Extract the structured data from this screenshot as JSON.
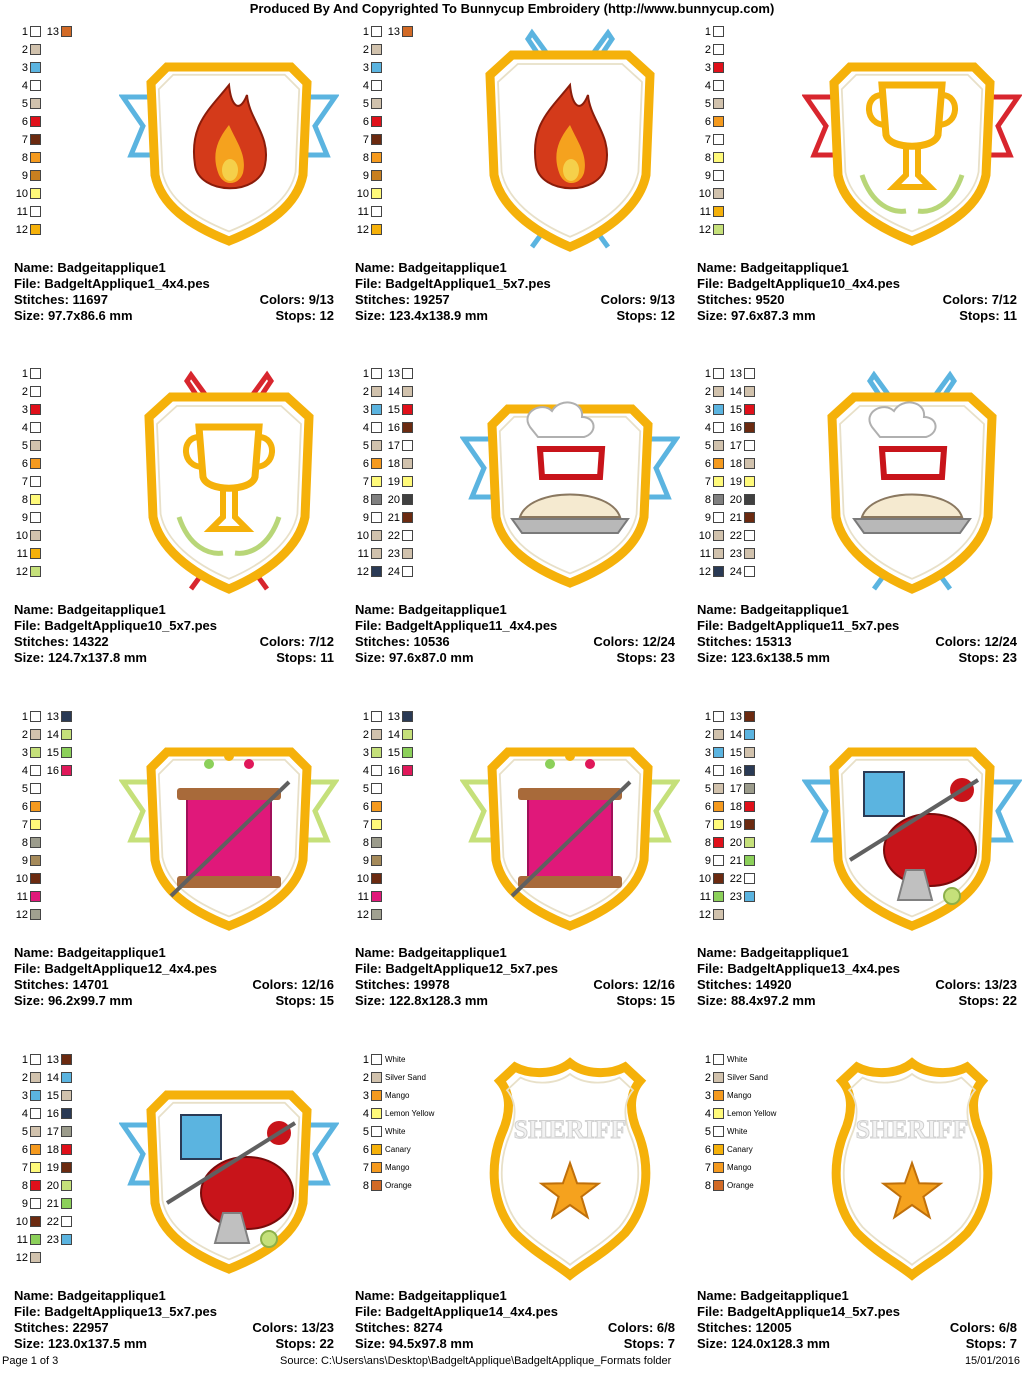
{
  "header": "Produced By And Copyrighted To Bunnycup Embroidery (http://www.bunnycup.com)",
  "labels": {
    "name": "Name:",
    "file": "File:",
    "stitches": "Stitches:",
    "size": "Size:",
    "colors": "Colors:",
    "stops": "Stops:"
  },
  "designs": [
    {
      "name": "Badgeitapplique1",
      "file": "BadgeltApplique1_4x4.pes",
      "stitches": "11697",
      "size": "97.7x86.6 mm",
      "colors": "9/13",
      "stops": "12",
      "art": {
        "shape": "shield-ribbon",
        "motif": "flame",
        "ribbon": "#5bb4e0",
        "inner": "#ffffff"
      },
      "swatches": [
        [
          "1",
          "#ffffff",
          ""
        ],
        [
          "2",
          "#d1c2ad",
          ""
        ],
        [
          "3",
          "#5bb4e0",
          ""
        ],
        [
          "4",
          "#ffffff",
          ""
        ],
        [
          "5",
          "#d1c2ad",
          ""
        ],
        [
          "6",
          "#e0101a",
          ""
        ],
        [
          "7",
          "#6b2a10",
          ""
        ],
        [
          "8",
          "#f59a1e",
          ""
        ],
        [
          "9",
          "#c87f20",
          ""
        ],
        [
          "10",
          "#fffa7a",
          ""
        ],
        [
          "11",
          "#ffffff",
          ""
        ],
        [
          "12",
          "#f5b10a",
          ""
        ],
        [
          "13",
          "#d26a26",
          ""
        ]
      ]
    },
    {
      "name": "Badgeitapplique1",
      "file": "BadgeltApplique1_5x7.pes",
      "stitches": "19257",
      "size": "123.4x138.9 mm",
      "colors": "9/13",
      "stops": "12",
      "art": {
        "shape": "shield-vertical",
        "motif": "flame",
        "ribbon": "#5bb4e0",
        "inner": "#ffffff"
      },
      "swatches": [
        [
          "1",
          "#ffffff",
          ""
        ],
        [
          "2",
          "#d1c2ad",
          ""
        ],
        [
          "3",
          "#5bb4e0",
          ""
        ],
        [
          "4",
          "#ffffff",
          ""
        ],
        [
          "5",
          "#d1c2ad",
          ""
        ],
        [
          "6",
          "#e0101a",
          ""
        ],
        [
          "7",
          "#6b2a10",
          ""
        ],
        [
          "8",
          "#f59a1e",
          ""
        ],
        [
          "9",
          "#c87f20",
          ""
        ],
        [
          "10",
          "#fffa7a",
          ""
        ],
        [
          "11",
          "#ffffff",
          ""
        ],
        [
          "12",
          "#f5b10a",
          ""
        ],
        [
          "13",
          "#d26a26",
          ""
        ]
      ]
    },
    {
      "name": "Badgeitapplique1",
      "file": "BadgeltApplique10_4x4.pes",
      "stitches": "9520",
      "size": "97.6x87.3 mm",
      "colors": "7/12",
      "stops": "11",
      "art": {
        "shape": "shield-ribbon",
        "motif": "trophy",
        "ribbon": "#d8262e",
        "inner": "#ffffff"
      },
      "swatches": [
        [
          "1",
          "#ffffff",
          ""
        ],
        [
          "2",
          "#ffffff",
          ""
        ],
        [
          "3",
          "#e0101a",
          ""
        ],
        [
          "4",
          "#ffffff",
          ""
        ],
        [
          "5",
          "#d1c2ad",
          ""
        ],
        [
          "6",
          "#f59a1e",
          ""
        ],
        [
          "7",
          "#ffffff",
          ""
        ],
        [
          "8",
          "#fffa7a",
          ""
        ],
        [
          "9",
          "#ffffff",
          ""
        ],
        [
          "10",
          "#d1c2ad",
          ""
        ],
        [
          "11",
          "#f5b10a",
          ""
        ],
        [
          "12",
          "#c5e07a",
          ""
        ]
      ]
    },
    {
      "name": "Badgeitapplique1",
      "file": "BadgeltApplique10_5x7.pes",
      "stitches": "14322",
      "size": "124.7x137.8 mm",
      "colors": "7/12",
      "stops": "11",
      "art": {
        "shape": "shield-vertical",
        "motif": "trophy",
        "ribbon": "#d8262e",
        "inner": "#ffffff"
      },
      "swatches": [
        [
          "1",
          "#ffffff",
          ""
        ],
        [
          "2",
          "#ffffff",
          ""
        ],
        [
          "3",
          "#e0101a",
          ""
        ],
        [
          "4",
          "#ffffff",
          ""
        ],
        [
          "5",
          "#d1c2ad",
          ""
        ],
        [
          "6",
          "#f59a1e",
          ""
        ],
        [
          "7",
          "#ffffff",
          ""
        ],
        [
          "8",
          "#fffa7a",
          ""
        ],
        [
          "9",
          "#ffffff",
          ""
        ],
        [
          "10",
          "#d1c2ad",
          ""
        ],
        [
          "11",
          "#f5b10a",
          ""
        ],
        [
          "12",
          "#c5e07a",
          ""
        ]
      ]
    },
    {
      "name": "Badgeitapplique1",
      "file": "BadgeltApplique11_4x4.pes",
      "stitches": "10536",
      "size": "97.6x87.0 mm",
      "colors": "12/24",
      "stops": "23",
      "art": {
        "shape": "shield-ribbon",
        "motif": "pie",
        "ribbon": "#5bb4e0",
        "inner": "#ffffff"
      },
      "swatches": [
        [
          "1",
          "#ffffff",
          ""
        ],
        [
          "2",
          "#d1c2ad",
          ""
        ],
        [
          "3",
          "#5bb4e0",
          ""
        ],
        [
          "4",
          "#ffffff",
          ""
        ],
        [
          "5",
          "#d1c2ad",
          ""
        ],
        [
          "6",
          "#f59a1e",
          ""
        ],
        [
          "7",
          "#fffa7a",
          ""
        ],
        [
          "8",
          "#808080",
          ""
        ],
        [
          "9",
          "#ffffff",
          ""
        ],
        [
          "10",
          "#d1c2ad",
          ""
        ],
        [
          "11",
          "#d1c2ad",
          ""
        ],
        [
          "12",
          "#2a3a55",
          ""
        ],
        [
          "13",
          "#ffffff",
          ""
        ],
        [
          "14",
          "#d1c2ad",
          ""
        ],
        [
          "15",
          "#e0101a",
          ""
        ],
        [
          "16",
          "#6b2a10",
          ""
        ],
        [
          "17",
          "#ffffff",
          ""
        ],
        [
          "18",
          "#d1c2ad",
          ""
        ],
        [
          "19",
          "#fffa7a",
          ""
        ],
        [
          "20",
          "#404040",
          ""
        ],
        [
          "21",
          "#6b2a10",
          ""
        ],
        [
          "22",
          "#ffffff",
          ""
        ],
        [
          "23",
          "#d1c2ad",
          ""
        ],
        [
          "24",
          "#ffffff",
          ""
        ]
      ]
    },
    {
      "name": "Badgeitapplique1",
      "file": "BadgeltApplique11_5x7.pes",
      "stitches": "15313",
      "size": "123.6x138.5 mm",
      "colors": "12/24",
      "stops": "23",
      "art": {
        "shape": "shield-vertical",
        "motif": "pie",
        "ribbon": "#5bb4e0",
        "inner": "#ffffff"
      },
      "swatches": [
        [
          "1",
          "#ffffff",
          ""
        ],
        [
          "2",
          "#d1c2ad",
          ""
        ],
        [
          "3",
          "#5bb4e0",
          ""
        ],
        [
          "4",
          "#ffffff",
          ""
        ],
        [
          "5",
          "#d1c2ad",
          ""
        ],
        [
          "6",
          "#f59a1e",
          ""
        ],
        [
          "7",
          "#fffa7a",
          ""
        ],
        [
          "8",
          "#808080",
          ""
        ],
        [
          "9",
          "#ffffff",
          ""
        ],
        [
          "10",
          "#d1c2ad",
          ""
        ],
        [
          "11",
          "#d1c2ad",
          ""
        ],
        [
          "12",
          "#2a3a55",
          ""
        ],
        [
          "13",
          "#ffffff",
          ""
        ],
        [
          "14",
          "#d1c2ad",
          ""
        ],
        [
          "15",
          "#e0101a",
          ""
        ],
        [
          "16",
          "#6b2a10",
          ""
        ],
        [
          "17",
          "#ffffff",
          ""
        ],
        [
          "18",
          "#d1c2ad",
          ""
        ],
        [
          "19",
          "#fffa7a",
          ""
        ],
        [
          "20",
          "#404040",
          ""
        ],
        [
          "21",
          "#6b2a10",
          ""
        ],
        [
          "22",
          "#ffffff",
          ""
        ],
        [
          "23",
          "#d1c2ad",
          ""
        ],
        [
          "24",
          "#ffffff",
          ""
        ]
      ]
    },
    {
      "name": "Badgeitapplique1",
      "file": "BadgeltApplique12_4x4.pes",
      "stitches": "14701",
      "size": "96.2x99.7 mm",
      "colors": "12/16",
      "stops": "15",
      "art": {
        "shape": "shield-ribbon",
        "motif": "spool",
        "ribbon": "#c5e07a",
        "inner": "#ffffff"
      },
      "swatches": [
        [
          "1",
          "#ffffff",
          ""
        ],
        [
          "2",
          "#d1c2ad",
          ""
        ],
        [
          "3",
          "#c5e07a",
          ""
        ],
        [
          "4",
          "#ffffff",
          ""
        ],
        [
          "5",
          "#ffffff",
          ""
        ],
        [
          "6",
          "#f59a1e",
          ""
        ],
        [
          "7",
          "#fffa7a",
          ""
        ],
        [
          "8",
          "#9c9c8c",
          ""
        ],
        [
          "9",
          "#a58a5a",
          ""
        ],
        [
          "10",
          "#6b2a10",
          ""
        ],
        [
          "11",
          "#e0187a",
          ""
        ],
        [
          "12",
          "#a0a090",
          ""
        ],
        [
          "13",
          "#2a3a55",
          ""
        ],
        [
          "14",
          "#c5e07a",
          ""
        ],
        [
          "15",
          "#8cd05a",
          ""
        ],
        [
          "16",
          "#e0185a",
          ""
        ]
      ]
    },
    {
      "name": "Badgeitapplique1",
      "file": "BadgeltApplique12_5x7.pes",
      "stitches": "19978",
      "size": "122.8x128.3 mm",
      "colors": "12/16",
      "stops": "15",
      "art": {
        "shape": "shield-ribbon",
        "motif": "spool",
        "ribbon": "#c5e07a",
        "inner": "#ffffff"
      },
      "swatches": [
        [
          "1",
          "#ffffff",
          ""
        ],
        [
          "2",
          "#d1c2ad",
          ""
        ],
        [
          "3",
          "#c5e07a",
          ""
        ],
        [
          "4",
          "#ffffff",
          ""
        ],
        [
          "5",
          "#ffffff",
          ""
        ],
        [
          "6",
          "#f59a1e",
          ""
        ],
        [
          "7",
          "#fffa7a",
          ""
        ],
        [
          "8",
          "#9c9c8c",
          ""
        ],
        [
          "9",
          "#a58a5a",
          ""
        ],
        [
          "10",
          "#6b2a10",
          ""
        ],
        [
          "11",
          "#e0187a",
          ""
        ],
        [
          "12",
          "#a0a090",
          ""
        ],
        [
          "13",
          "#2a3a55",
          ""
        ],
        [
          "14",
          "#c5e07a",
          ""
        ],
        [
          "15",
          "#8cd05a",
          ""
        ],
        [
          "16",
          "#e0185a",
          ""
        ]
      ]
    },
    {
      "name": "Badgeitapplique1",
      "file": "BadgeltApplique13_4x4.pes",
      "stitches": "14920",
      "size": "88.4x97.2 mm",
      "colors": "13/23",
      "stops": "22",
      "art": {
        "shape": "shield-ribbon",
        "motif": "pincushion",
        "ribbon": "#5bb4e0",
        "inner": "#ffffff"
      },
      "swatches": [
        [
          "1",
          "#ffffff",
          ""
        ],
        [
          "2",
          "#d1c2ad",
          ""
        ],
        [
          "3",
          "#5bb4e0",
          ""
        ],
        [
          "4",
          "#ffffff",
          ""
        ],
        [
          "5",
          "#d1c2ad",
          ""
        ],
        [
          "6",
          "#f59a1e",
          ""
        ],
        [
          "7",
          "#fffa7a",
          ""
        ],
        [
          "8",
          "#e0101a",
          ""
        ],
        [
          "9",
          "#ffffff",
          ""
        ],
        [
          "10",
          "#6b2a10",
          ""
        ],
        [
          "11",
          "#8cd05a",
          ""
        ],
        [
          "12",
          "#d1c2ad",
          ""
        ],
        [
          "13",
          "#6b2a10",
          ""
        ],
        [
          "14",
          "#5bb4e0",
          ""
        ],
        [
          "15",
          "#d1c2ad",
          ""
        ],
        [
          "16",
          "#2a3a55",
          ""
        ],
        [
          "17",
          "#9c9c8c",
          ""
        ],
        [
          "18",
          "#e0101a",
          ""
        ],
        [
          "19",
          "#6b2a10",
          ""
        ],
        [
          "20",
          "#c5e07a",
          ""
        ],
        [
          "21",
          "#8cd05a",
          ""
        ],
        [
          "22",
          "#ffffff",
          ""
        ],
        [
          "23",
          "#5bb4e0",
          ""
        ]
      ]
    },
    {
      "name": "Badgeitapplique1",
      "file": "BadgeltApplique13_5x7.pes",
      "stitches": "22957",
      "size": "123.0x137.5 mm",
      "colors": "13/23",
      "stops": "22",
      "art": {
        "shape": "shield-ribbon",
        "motif": "pincushion",
        "ribbon": "#5bb4e0",
        "inner": "#ffffff"
      },
      "swatches": [
        [
          "1",
          "#ffffff",
          ""
        ],
        [
          "2",
          "#d1c2ad",
          ""
        ],
        [
          "3",
          "#5bb4e0",
          ""
        ],
        [
          "4",
          "#ffffff",
          ""
        ],
        [
          "5",
          "#d1c2ad",
          ""
        ],
        [
          "6",
          "#f59a1e",
          ""
        ],
        [
          "7",
          "#fffa7a",
          ""
        ],
        [
          "8",
          "#e0101a",
          ""
        ],
        [
          "9",
          "#ffffff",
          ""
        ],
        [
          "10",
          "#6b2a10",
          ""
        ],
        [
          "11",
          "#8cd05a",
          ""
        ],
        [
          "12",
          "#d1c2ad",
          ""
        ],
        [
          "13",
          "#6b2a10",
          ""
        ],
        [
          "14",
          "#5bb4e0",
          ""
        ],
        [
          "15",
          "#d1c2ad",
          ""
        ],
        [
          "16",
          "#2a3a55",
          ""
        ],
        [
          "17",
          "#9c9c8c",
          ""
        ],
        [
          "18",
          "#e0101a",
          ""
        ],
        [
          "19",
          "#6b2a10",
          ""
        ],
        [
          "20",
          "#c5e07a",
          ""
        ],
        [
          "21",
          "#8cd05a",
          ""
        ],
        [
          "22",
          "#ffffff",
          ""
        ],
        [
          "23",
          "#5bb4e0",
          ""
        ]
      ]
    },
    {
      "name": "Badgeitapplique1",
      "file": "BadgeltApplique14_4x4.pes",
      "stitches": "8274",
      "size": "94.5x97.8 mm",
      "colors": "6/8",
      "stops": "7",
      "art": {
        "shape": "shield-police",
        "motif": "sheriff",
        "ribbon": "",
        "inner": "#ffffff",
        "text": "SHERIFF"
      },
      "swatches": [
        [
          "1",
          "#ffffff",
          "White"
        ],
        [
          "2",
          "#d1c2ad",
          "Silver Sand"
        ],
        [
          "3",
          "#f59a1e",
          "Mango"
        ],
        [
          "4",
          "#fffa7a",
          "Lemon Yellow"
        ],
        [
          "5",
          "#ffffff",
          "White"
        ],
        [
          "6",
          "#f5b10a",
          "Canary"
        ],
        [
          "7",
          "#f59a1e",
          "Mango"
        ],
        [
          "8",
          "#d26a26",
          "Orange"
        ]
      ]
    },
    {
      "name": "Badgeitapplique1",
      "file": "BadgeltApplique14_5x7.pes",
      "stitches": "12005",
      "size": "124.0x128.3 mm",
      "colors": "6/8",
      "stops": "7",
      "art": {
        "shape": "shield-police",
        "motif": "sheriff",
        "ribbon": "",
        "inner": "#ffffff",
        "text": "SHERIFF"
      },
      "swatches": [
        [
          "1",
          "#ffffff",
          "White"
        ],
        [
          "2",
          "#d1c2ad",
          "Silver Sand"
        ],
        [
          "3",
          "#f59a1e",
          "Mango"
        ],
        [
          "4",
          "#fffa7a",
          "Lemon Yellow"
        ],
        [
          "5",
          "#ffffff",
          "White"
        ],
        [
          "6",
          "#f5b10a",
          "Canary"
        ],
        [
          "7",
          "#f59a1e",
          "Mango"
        ],
        [
          "8",
          "#d26a26",
          "Orange"
        ]
      ]
    }
  ],
  "footer": {
    "page": "Page 1 of 3",
    "source": "Source: C:\\Users\\ans\\Desktop\\BadgeltApplique\\BadgeltApplique_Formats folder",
    "date": "15/01/2016"
  }
}
